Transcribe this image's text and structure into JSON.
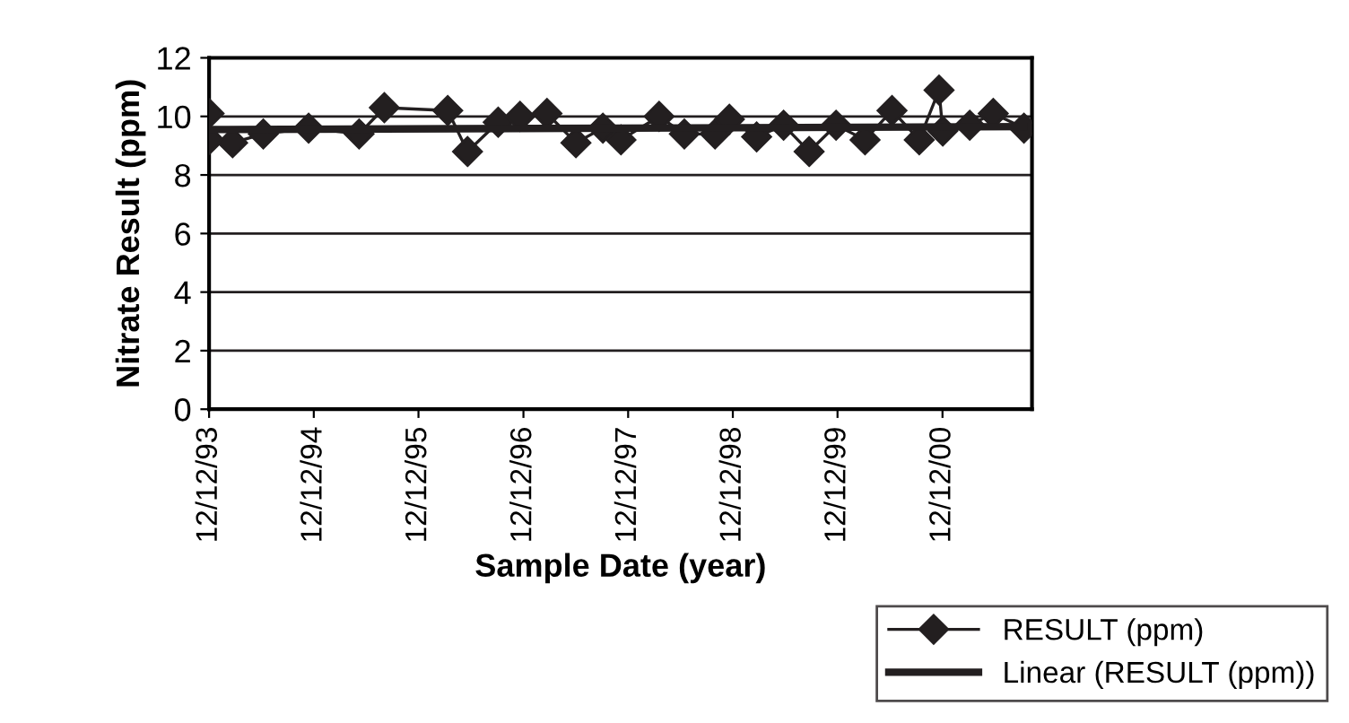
{
  "chart_data": {
    "type": "line",
    "xlabel": "Sample Date (year)",
    "ylabel": "Nitrate Result (ppm)",
    "xlim": [
      "1993-12-12",
      "2001-10-20"
    ],
    "ylim": [
      0,
      12
    ],
    "yticks": [
      0,
      2,
      4,
      6,
      8,
      10,
      12
    ],
    "xticks": [
      {
        "value": "1993-12-12",
        "label": "12/12/93"
      },
      {
        "value": "1994-12-12",
        "label": "12/12/94"
      },
      {
        "value": "1995-12-12",
        "label": "12/12/95"
      },
      {
        "value": "1996-12-12",
        "label": "12/12/96"
      },
      {
        "value": "1997-12-12",
        "label": "12/12/97"
      },
      {
        "value": "1998-12-12",
        "label": "12/12/98"
      },
      {
        "value": "1999-12-12",
        "label": "12/12/99"
      },
      {
        "value": "2000-12-12",
        "label": "12/12/00"
      }
    ],
    "grid": "y",
    "legend": "bottom right",
    "series": [
      {
        "name": "RESULT (ppm)",
        "color": "#231f20",
        "marker": "diamond",
        "x": [
          "1993-12-12",
          "1993-12-12",
          "1994-03-04",
          "1994-06-19",
          "1994-11-24",
          "1995-05-19",
          "1995-08-15",
          "1996-03-23",
          "1996-05-31",
          "1996-09-15",
          "1996-11-30",
          "1997-03-04",
          "1997-06-13",
          "1997-09-15",
          "1997-11-17",
          "1998-03-30",
          "1998-06-26",
          "1998-10-11",
          "1998-11-30",
          "1999-03-05",
          "1999-06-07",
          "1999-09-04",
          "1999-12-07",
          "2000-03-17",
          "2000-06-19",
          "2000-09-22",
          "2000-11-30",
          "2000-12-13",
          "2001-03-17",
          "2001-06-07",
          "2001-09-22"
        ],
        "values": [
          10.1,
          9.2,
          9.1,
          9.4,
          9.6,
          9.4,
          10.3,
          10.2,
          8.8,
          9.8,
          10.0,
          10.1,
          9.1,
          9.6,
          9.2,
          10.0,
          9.4,
          9.4,
          9.9,
          9.3,
          9.7,
          8.8,
          9.7,
          9.2,
          10.2,
          9.2,
          10.9,
          9.5,
          9.7,
          10.1,
          9.6
        ]
      },
      {
        "name": "Linear (RESULT (ppm))",
        "color": "#231f20",
        "marker": "none",
        "x": [
          "1993-12-12",
          "2001-09-22"
        ],
        "values": [
          9.55,
          9.65
        ]
      }
    ]
  }
}
